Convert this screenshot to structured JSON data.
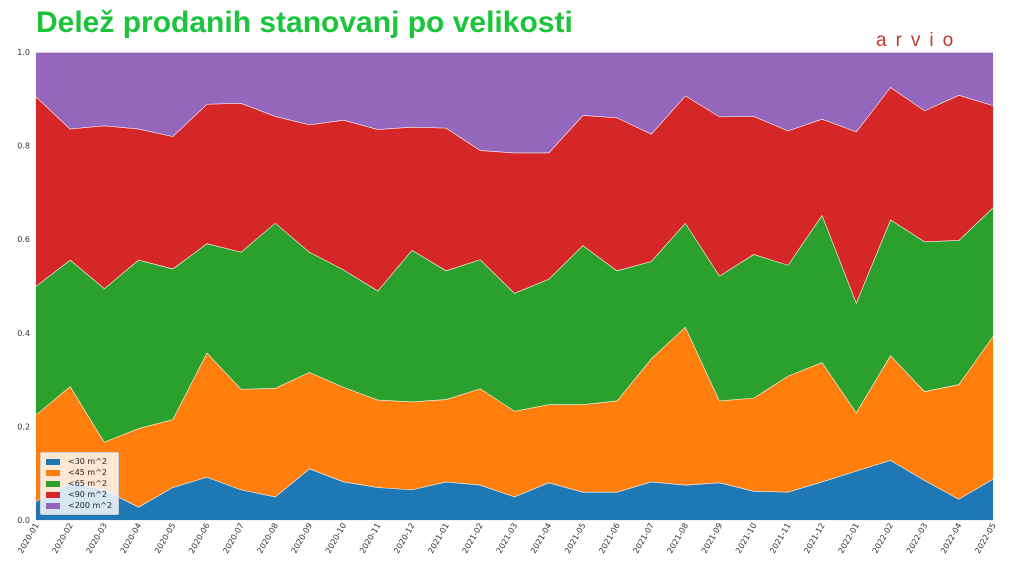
{
  "title": "Delež prodanih stanovanj po velikosti",
  "logo": "arvio",
  "chart_data": {
    "type": "area",
    "stacked": true,
    "normalized": true,
    "x": [
      "2020-01",
      "2020-02",
      "2020-03",
      "2020-04",
      "2020-05",
      "2020-06",
      "2020-07",
      "2020-08",
      "2020-09",
      "2020-10",
      "2020-11",
      "2020-12",
      "2021-01",
      "2021-02",
      "2021-03",
      "2021-04",
      "2021-05",
      "2021-06",
      "2021-07",
      "2021-08",
      "2021-09",
      "2021-10",
      "2021-11",
      "2021-12",
      "2022-01",
      "2022-02",
      "2022-03",
      "2022-04",
      "2022-05"
    ],
    "ylim": [
      0,
      1.0
    ],
    "yticks": [
      "0.0",
      "0.2",
      "0.4",
      "0.6",
      "0.8",
      "1.0"
    ],
    "grid": true,
    "legend_position": "bottom-left",
    "series": [
      {
        "name": "<30 m^2",
        "color": "#1f77b4",
        "values": [
          0.04,
          0.08,
          0.065,
          0.028,
          0.07,
          0.092,
          0.065,
          0.05,
          0.11,
          0.082,
          0.07,
          0.065,
          0.082,
          0.075,
          0.05,
          0.08,
          0.06,
          0.06,
          0.082,
          0.075,
          0.08,
          0.062,
          0.06,
          0.082,
          0.105,
          0.128,
          0.085,
          0.045,
          0.088
        ]
      },
      {
        "name": "<45 m^2",
        "color": "#ff7f0e",
        "values": [
          0.185,
          0.206,
          0.102,
          0.168,
          0.145,
          0.266,
          0.215,
          0.232,
          0.206,
          0.202,
          0.187,
          0.188,
          0.176,
          0.206,
          0.183,
          0.167,
          0.187,
          0.195,
          0.263,
          0.338,
          0.175,
          0.199,
          0.248,
          0.255,
          0.125,
          0.224,
          0.19,
          0.245,
          0.305
        ]
      },
      {
        "name": "<65 m^2",
        "color": "#2ca02c",
        "values": [
          0.275,
          0.27,
          0.328,
          0.36,
          0.322,
          0.233,
          0.293,
          0.353,
          0.257,
          0.251,
          0.233,
          0.324,
          0.275,
          0.276,
          0.252,
          0.268,
          0.34,
          0.278,
          0.208,
          0.222,
          0.267,
          0.307,
          0.237,
          0.315,
          0.235,
          0.29,
          0.32,
          0.308,
          0.275
        ]
      },
      {
        "name": "<90 m^2",
        "color": "#d62728",
        "values": [
          0.405,
          0.28,
          0.348,
          0.28,
          0.283,
          0.298,
          0.318,
          0.228,
          0.272,
          0.32,
          0.345,
          0.263,
          0.305,
          0.233,
          0.3,
          0.27,
          0.278,
          0.327,
          0.272,
          0.272,
          0.34,
          0.295,
          0.287,
          0.205,
          0.365,
          0.283,
          0.28,
          0.31,
          0.218
        ]
      },
      {
        "name": "<200 m^2",
        "color": "#9467bd",
        "values": [
          0.095,
          0.164,
          0.157,
          0.164,
          0.18,
          0.111,
          0.109,
          0.137,
          0.155,
          0.145,
          0.165,
          0.16,
          0.162,
          0.21,
          0.215,
          0.215,
          0.135,
          0.14,
          0.175,
          0.093,
          0.138,
          0.137,
          0.168,
          0.143,
          0.17,
          0.075,
          0.125,
          0.092,
          0.114
        ]
      }
    ]
  }
}
